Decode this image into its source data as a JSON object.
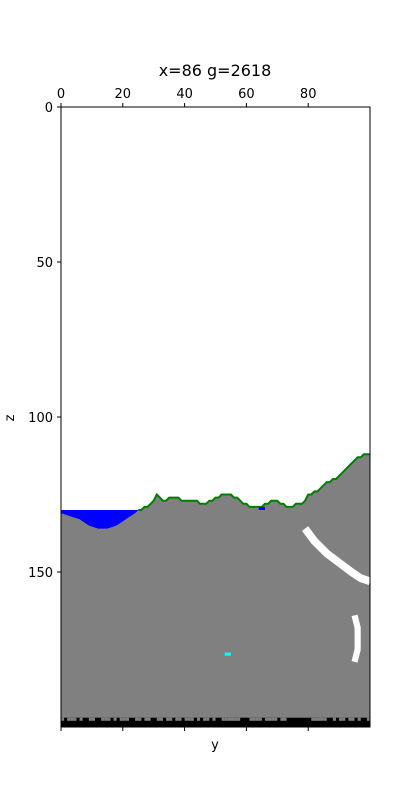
{
  "chart_data": {
    "type": "heatmap",
    "title": "x=86 g=2618",
    "xlabel": "y",
    "ylabel": "z",
    "x_axis_position": "top",
    "xlim": [
      0,
      100
    ],
    "ylim": [
      200,
      0
    ],
    "xticks": [
      0,
      20,
      40,
      60,
      80
    ],
    "xtick_labels": [
      "0",
      "20",
      "40",
      "60",
      "80"
    ],
    "yticks": [
      0,
      50,
      100,
      150
    ],
    "ytick_labels": [
      "0",
      "50",
      "100",
      "150"
    ],
    "grid": false,
    "legend": "none",
    "colors": {
      "air": "#ffffff",
      "stone": "#808080",
      "water": "#0000ff",
      "grass": "#008000",
      "cave": "#ffffff",
      "diamond": "#00ffff",
      "bedrock": "#000000"
    },
    "surface_profile": {
      "description": "top of stone column per y (z value)",
      "y": [
        0,
        5,
        10,
        15,
        20,
        25,
        28,
        30,
        31,
        33,
        36,
        38,
        40,
        43,
        46,
        49,
        52,
        55,
        58,
        60,
        62,
        64,
        66,
        69,
        72,
        74,
        77,
        79,
        80,
        82,
        84,
        86,
        88,
        90,
        92,
        94,
        96,
        98,
        100
      ],
      "z": [
        130,
        130,
        130,
        130,
        130,
        130,
        129,
        127,
        125,
        127,
        126,
        126,
        127,
        127,
        128,
        127,
        125,
        125,
        127,
        128,
        129,
        129,
        128,
        127,
        128,
        129,
        128,
        127,
        125,
        124,
        123,
        121,
        120,
        119,
        117,
        115,
        113,
        112,
        112
      ]
    },
    "water_pool": {
      "y_range": [
        0,
        25
      ],
      "surface_z": 130,
      "bottom_profile_y": [
        0,
        3,
        6,
        9,
        12,
        15,
        18,
        21,
        24,
        25
      ],
      "bottom_profile_z": [
        131,
        132,
        133,
        135,
        136,
        136,
        135,
        133,
        131,
        130
      ]
    },
    "water_puddle": {
      "y": [
        64,
        66
      ],
      "z": 129
    },
    "caves": [
      {
        "name": "diagonal cave",
        "polyline_y": [
          79,
          82,
          86,
          90,
          94,
          97,
          100
        ],
        "polyline_z": [
          136,
          140,
          144,
          147,
          150,
          152,
          153
        ],
        "thickness": 2.5
      },
      {
        "name": "vertical cave",
        "polyline_y": [
          95,
          96,
          96,
          95
        ],
        "polyline_z": [
          164,
          168,
          175,
          179
        ],
        "thickness": 2
      }
    ],
    "diamond": {
      "y": 53,
      "z": 176
    },
    "bedrock": {
      "z_range": [
        197,
        200
      ]
    }
  }
}
